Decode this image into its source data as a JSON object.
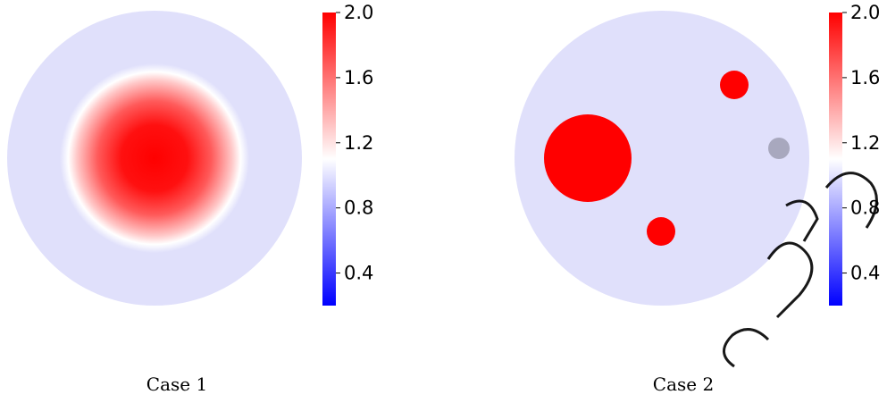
{
  "chart_data": [
    {
      "type": "heatmap",
      "caption": "Case 1",
      "colormap": "bwr",
      "colorbar": {
        "range": [
          0.2,
          2.0
        ],
        "ticks": [
          0.4,
          0.8,
          1.2,
          1.6,
          2.0
        ],
        "tick_labels": [
          "0.4",
          "0.8",
          "1.2",
          "1.6",
          "2.0"
        ]
      },
      "domain": "disk",
      "background_value": 0.9,
      "features": [
        {
          "shape": "smooth-bump",
          "center": [
            0,
            0
          ],
          "peak_value": 2.0
        }
      ]
    },
    {
      "type": "heatmap",
      "caption": "Case 2",
      "colormap": "bwr",
      "colorbar": {
        "range": [
          0.2,
          2.0
        ],
        "ticks": [
          0.4,
          0.8,
          1.2,
          1.6,
          2.0
        ],
        "tick_labels": [
          "0.4",
          "0.8",
          "1.2",
          "1.6",
          "2.0"
        ]
      },
      "domain": "disk",
      "background_value": 0.9,
      "features": [
        {
          "shape": "disk",
          "value": 2.0,
          "center": [
            -0.5,
            0.0
          ],
          "radius": 0.3
        },
        {
          "shape": "disk",
          "value": 2.0,
          "center": [
            0.45,
            0.5
          ],
          "radius": 0.1
        },
        {
          "shape": "disk",
          "value": 2.0,
          "center": [
            -0.2,
            -0.5
          ],
          "radius": 0.1
        },
        {
          "shape": "disk",
          "value": 0.6,
          "center": [
            0.6,
            0.05
          ],
          "radius": 0.07
        }
      ]
    }
  ],
  "colors": {
    "low": "#0000ff",
    "mid": "#ffffff",
    "high": "#ff0000",
    "background": "#e0e0fb",
    "low_disk": "#a8a8be"
  }
}
